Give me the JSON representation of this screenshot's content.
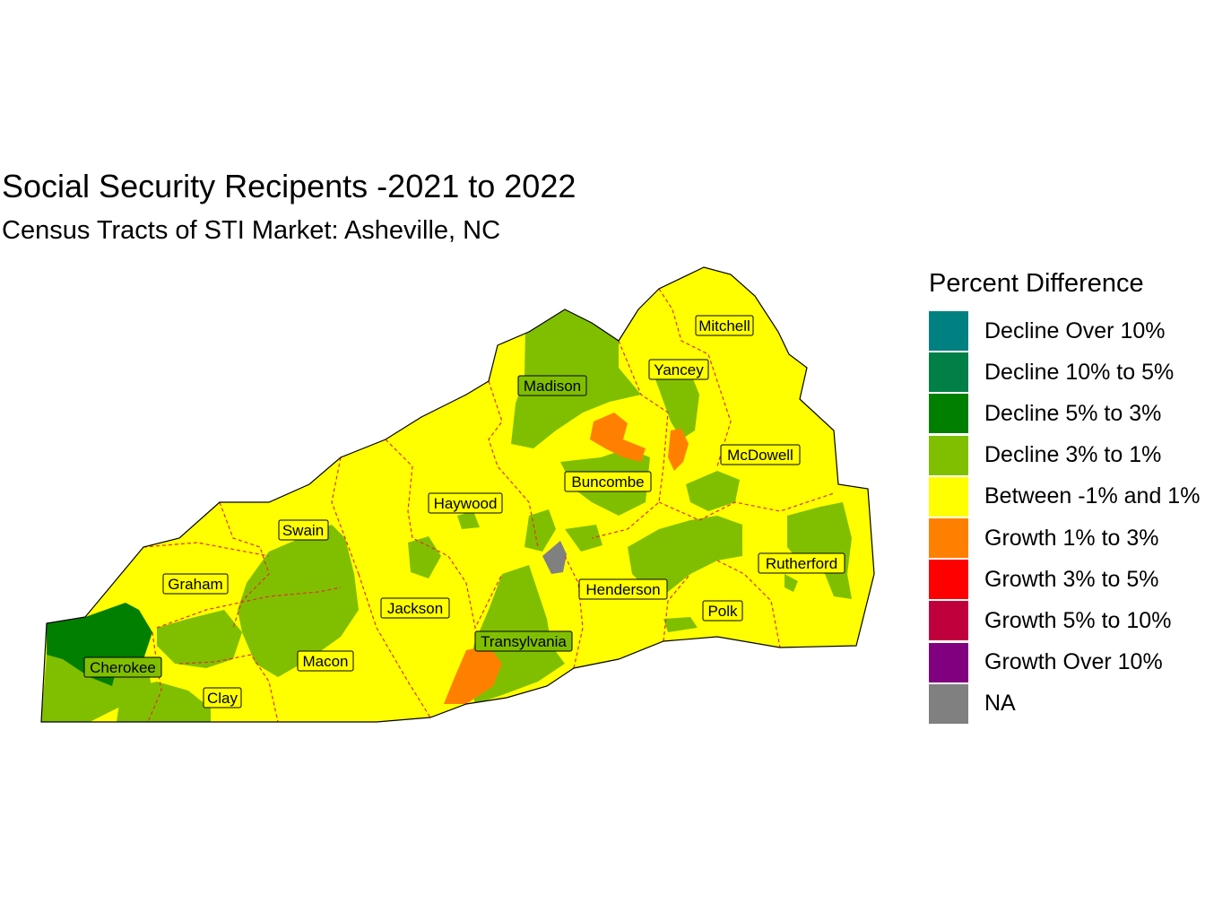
{
  "title": "Social Security Recipents -2021 to 2022",
  "subtitle": "Census Tracts of STI Market: Asheville, NC",
  "legend": {
    "title": "Percent Difference",
    "items": [
      {
        "label": "Decline Over 10%",
        "color": "#008080"
      },
      {
        "label": "Decline 10% to 5%",
        "color": "#007f47"
      },
      {
        "label": "Decline 5% to 3%",
        "color": "#007f00"
      },
      {
        "label": "Decline 3% to 1%",
        "color": "#80bf00"
      },
      {
        "label": "Between -1% and 1%",
        "color": "#ffff00"
      },
      {
        "label": "Growth 1% to 3%",
        "color": "#ff8000"
      },
      {
        "label": "Growth 3% to 5%",
        "color": "#ff0000"
      },
      {
        "label": "Growth 5% to 10%",
        "color": "#c0003c"
      },
      {
        "label": "Growth Over 10%",
        "color": "#800080"
      },
      {
        "label": "NA",
        "color": "#808080"
      }
    ]
  },
  "counties": [
    "Mitchell",
    "Yancey",
    "Madison",
    "McDowell",
    "Buncombe",
    "Haywood",
    "Swain",
    "Graham",
    "Rutherford",
    "Henderson",
    "Jackson",
    "Polk",
    "Transylvania",
    "Macon",
    "Cherokee",
    "Clay"
  ]
}
